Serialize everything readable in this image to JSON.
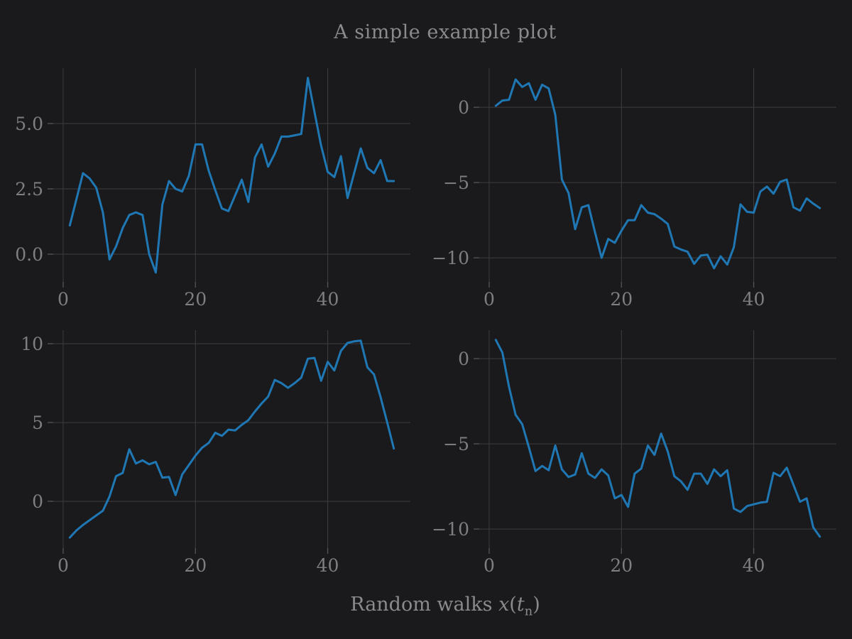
{
  "figure": {
    "title": "A simple example plot",
    "xlabel": {
      "prefix": "Random walks ",
      "var_x": "x",
      "open_paren": "(",
      "var_t": "t",
      "subscript": "n",
      "close_paren": ")"
    },
    "background_color": "#1a1a1c",
    "line_color": "#1f77b4",
    "grid_color": "#3e3e41",
    "tick_mark_color": "#55555a",
    "tick_label_color": "#7e7e83",
    "title_color": "#8a8a8e"
  },
  "chart_data": [
    {
      "type": "line",
      "position": "top-left",
      "x_start": 1,
      "n_points": 50,
      "xlim": [
        -1.5,
        52.5
      ],
      "ylim": [
        -1.06,
        7.12
      ],
      "xticks": [
        0,
        20,
        40
      ],
      "xtick_labels": [
        "0",
        "20",
        "40"
      ],
      "yticks": [
        0.0,
        2.5,
        5.0
      ],
      "ytick_labels": [
        "0.0",
        "2.5",
        "5.0"
      ],
      "grid": true,
      "values": [
        1.1,
        2.1,
        3.1,
        2.9,
        2.55,
        1.6,
        -0.2,
        0.3,
        1.0,
        1.5,
        1.6,
        1.5,
        0.0,
        -0.7,
        1.9,
        2.8,
        2.5,
        2.4,
        3.0,
        4.2,
        4.2,
        3.2,
        2.45,
        1.75,
        1.65,
        2.25,
        2.85,
        2.0,
        3.7,
        4.2,
        3.35,
        3.85,
        4.5,
        4.5,
        4.55,
        4.6,
        6.75,
        5.45,
        4.15,
        3.15,
        2.95,
        3.75,
        2.15,
        3.1,
        4.05,
        3.3,
        3.1,
        3.6,
        2.8,
        2.8
      ]
    },
    {
      "type": "line",
      "position": "top-right",
      "x_start": 1,
      "n_points": 50,
      "xlim": [
        -1.5,
        52.5
      ],
      "ylim": [
        -11.6,
        2.6
      ],
      "xticks": [
        0,
        20,
        40
      ],
      "xtick_labels": [
        "0",
        "20",
        "40"
      ],
      "yticks": [
        0,
        -5,
        -10
      ],
      "ytick_labels": [
        "0",
        "−5",
        "−10"
      ],
      "grid": true,
      "values": [
        0.1,
        0.45,
        0.5,
        1.85,
        1.35,
        1.6,
        0.5,
        1.5,
        1.25,
        -0.5,
        -4.8,
        -5.7,
        -8.1,
        -6.65,
        -6.5,
        -8.3,
        -10.0,
        -8.75,
        -9.0,
        -8.2,
        -7.5,
        -7.5,
        -6.5,
        -7.0,
        -7.1,
        -7.4,
        -7.75,
        -9.25,
        -9.45,
        -9.6,
        -10.4,
        -9.85,
        -9.8,
        -10.7,
        -9.9,
        -10.45,
        -9.3,
        -6.45,
        -6.95,
        -7.0,
        -5.6,
        -5.27,
        -5.74,
        -4.95,
        -4.8,
        -6.64,
        -6.87,
        -6.05,
        -6.4,
        -6.7
      ]
    },
    {
      "type": "line",
      "position": "bottom-left",
      "x_start": 1,
      "n_points": 50,
      "xlim": [
        -1.5,
        52.5
      ],
      "ylim": [
        -2.97,
        10.86
      ],
      "xticks": [
        0,
        20,
        40
      ],
      "xtick_labels": [
        "0",
        "20",
        "40"
      ],
      "yticks": [
        0,
        5,
        10
      ],
      "ytick_labels": [
        "0",
        "5",
        "10"
      ],
      "grid": true,
      "values": [
        -2.3,
        -1.85,
        -1.5,
        -1.2,
        -0.9,
        -0.6,
        0.3,
        1.6,
        1.8,
        3.3,
        2.4,
        2.6,
        2.35,
        2.5,
        1.5,
        1.55,
        0.4,
        1.7,
        2.3,
        2.9,
        3.4,
        3.7,
        4.35,
        4.15,
        4.55,
        4.5,
        4.85,
        5.15,
        5.7,
        6.2,
        6.65,
        7.7,
        7.5,
        7.2,
        7.5,
        7.85,
        9.05,
        9.1,
        7.65,
        8.85,
        8.3,
        9.55,
        10.05,
        10.15,
        10.2,
        8.5,
        8.05,
        6.6,
        5.0,
        3.35
      ]
    },
    {
      "type": "line",
      "position": "bottom-right",
      "x_start": 1,
      "n_points": 50,
      "xlim": [
        -1.5,
        52.5
      ],
      "ylim": [
        -11.12,
        1.67
      ],
      "xticks": [
        0,
        20,
        40
      ],
      "xtick_labels": [
        "0",
        "20",
        "40"
      ],
      "yticks": [
        0,
        -5,
        -10
      ],
      "ytick_labels": [
        "0",
        "−5",
        "−10"
      ],
      "grid": true,
      "values": [
        1.1,
        0.35,
        -1.65,
        -3.3,
        -3.85,
        -5.2,
        -6.6,
        -6.3,
        -6.55,
        -5.1,
        -6.5,
        -6.95,
        -6.8,
        -5.55,
        -6.75,
        -7.0,
        -6.5,
        -6.85,
        -8.2,
        -8.0,
        -8.7,
        -6.75,
        -6.45,
        -5.1,
        -5.65,
        -4.4,
        -5.45,
        -6.9,
        -7.2,
        -7.7,
        -6.75,
        -6.75,
        -7.35,
        -6.5,
        -6.9,
        -6.55,
        -8.8,
        -9.0,
        -8.65,
        -8.55,
        -8.45,
        -8.4,
        -6.7,
        -6.9,
        -6.4,
        -7.4,
        -8.4,
        -8.2,
        -9.9,
        -10.45
      ]
    }
  ]
}
